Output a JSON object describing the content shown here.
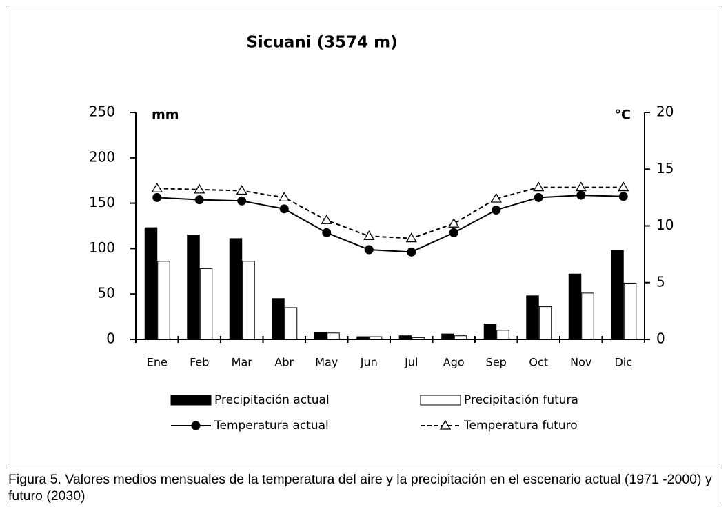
{
  "chart_data": {
    "type": "bar",
    "title": "Sicuani (3574 m)",
    "y_label": "mm",
    "y2_label": "°C",
    "categories": [
      "Ene",
      "Feb",
      "Mar",
      "Abr",
      "May",
      "Jun",
      "Jul",
      "Ago",
      "Sep",
      "Oct",
      "Nov",
      "Dic"
    ],
    "series": [
      {
        "name": "Precipitación actual",
        "type": "bar",
        "color": "#000000",
        "values": [
          123,
          115,
          111,
          45,
          8,
          3,
          4,
          6,
          17,
          48,
          72,
          98
        ]
      },
      {
        "name": "Precipitación futura",
        "type": "bar",
        "color": "#ffffff",
        "values": [
          86,
          78,
          86,
          35,
          7,
          3,
          2,
          4,
          10,
          36,
          51,
          62
        ]
      },
      {
        "name": "Temperatura actual",
        "type": "line",
        "axis": "y2",
        "color": "#000000",
        "marker": "circle",
        "line_style": "solid",
        "values": [
          12.5,
          12.3,
          12.2,
          11.5,
          9.4,
          7.9,
          7.7,
          9.4,
          11.4,
          12.5,
          12.7,
          12.6
        ]
      },
      {
        "name": "Temperatura futuro",
        "type": "line",
        "axis": "y2",
        "color": "#000000",
        "marker": "triangle",
        "line_style": "dashed",
        "values": [
          13.3,
          13.2,
          13.1,
          12.5,
          10.5,
          9.1,
          8.9,
          10.2,
          12.4,
          13.4,
          13.4,
          13.4
        ]
      }
    ],
    "ylim": [
      0,
      250
    ],
    "yticks": [
      0,
      50,
      100,
      150,
      200,
      250
    ],
    "y2lim": [
      0,
      20
    ],
    "y2ticks": [
      0,
      5,
      10,
      15,
      20
    ],
    "grid": false
  },
  "caption": "Figura 5.  Valores medios mensuales de la temperatura del aire y la precipitación en el escenario actual (1971 -2000) y futuro (2030)"
}
